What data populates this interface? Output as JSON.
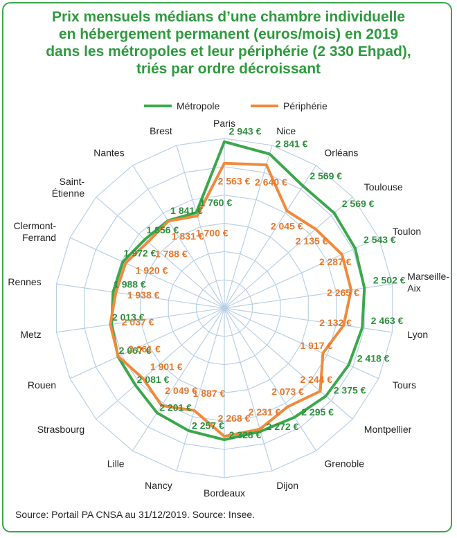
{
  "title_lines": [
    "Prix mensuels médians d’une chambre individuelle",
    "en hébergement permanent (euros/mois) en 2019",
    "dans les métropoles et leur périphérie (2 330 Ehpad),",
    "triés par ordre décroissant"
  ],
  "source": "Source: Portail PA CNSA au 31/12/2019. Source: Insee.",
  "colors": {
    "metropole": "#39a84b",
    "peripherie": "#f08a3c",
    "grid": "#b9cfe6",
    "title": "#2e9a3e"
  },
  "chart_data": {
    "type": "radar",
    "legend_position": "top-center",
    "categories": [
      "Paris",
      "Nice",
      "Orléans",
      "Toulouse",
      "Toulon",
      "Marseille-Aix",
      "Lyon",
      "Tours",
      "Montpellier",
      "Grenoble",
      "Dijon",
      "Bordeaux",
      "Nancy",
      "Lille",
      "Strasbourg",
      "Rouen",
      "Metz",
      "Rennes",
      "Clermont-Ferrand",
      "Saint-Étienne",
      "Nantes",
      "Brest"
    ],
    "series": [
      {
        "name": "Métropole",
        "values": [
          2943,
          2841,
          2569,
          2569,
          2543,
          2502,
          2463,
          2418,
          2375,
          2295,
          2272,
          2328,
          2257,
          2201,
          2081,
          2067,
          2013,
          1988,
          1972,
          1856,
          1841,
          1760
        ],
        "labels": [
          "2 943 €",
          "2 841 €",
          "2 569 €",
          "2 569 €",
          "2 543 €",
          "2 502 €",
          "2 463 €",
          "2 418 €",
          "2 375 €",
          "2 295 €",
          "2 272 €",
          "2 328 €",
          "2 257 €",
          "2 201 €",
          "2 081 €",
          "2 067 €",
          "2 013 €",
          "1 988 €",
          "1 972 €",
          "1 856 €",
          "1 841 €",
          "1 760 €"
        ]
      },
      {
        "name": "Périphérie",
        "values": [
          2563,
          2640,
          2045,
          2135,
          2287,
          2265,
          2132,
          1917,
          2244,
          2073,
          2231,
          2268,
          1887,
          2049,
          1901,
          2061,
          2037,
          1938,
          1920,
          1788,
          1831,
          1700
        ],
        "labels": [
          "2 563 €",
          "2 640 €",
          "2 045 €",
          "2 135 €",
          "2 287 €",
          "2 265 €",
          "2 132 €",
          "1 917 €",
          "2 244 €",
          "2 073 €",
          "2 231 €",
          "2 268 €",
          "1 887 €",
          "2 049 €",
          "1 901 €",
          "2 061 €",
          "2 037 €",
          "1 938 €",
          "1 920 €",
          "1 788 €",
          "1 831 €",
          "1 700 €"
        ]
      }
    ],
    "grid": true
  }
}
